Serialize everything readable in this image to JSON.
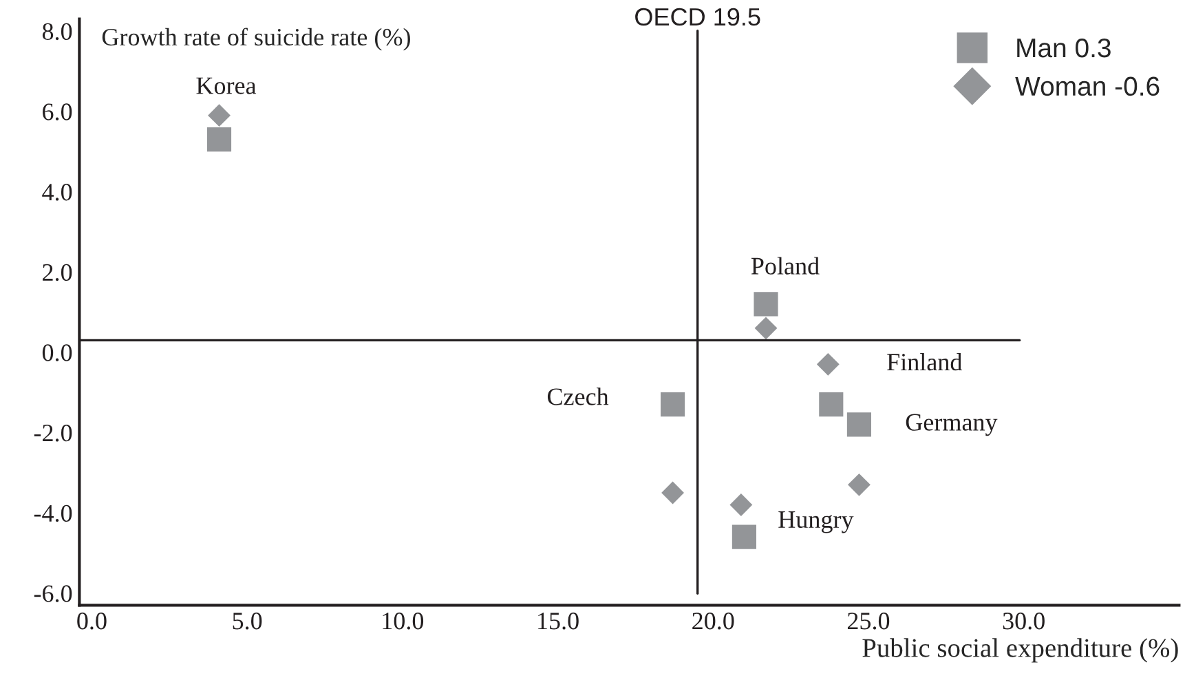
{
  "chart_data": {
    "type": "scatter",
    "ylabel": "Growth rate of suicide rate (%)",
    "xlabel": "Public social expenditure (%)",
    "xlim": [
      -0.4,
      35
    ],
    "ylim": [
      -6.3,
      8.3
    ],
    "xticks": [
      {
        "value": 0,
        "label": "0.0"
      },
      {
        "value": 5,
        "label": "5.0"
      },
      {
        "value": 10,
        "label": "10.0"
      },
      {
        "value": 15,
        "label": "15.0"
      },
      {
        "value": 20,
        "label": "20.0"
      },
      {
        "value": 25,
        "label": "25.0"
      },
      {
        "value": 30,
        "label": "30.0"
      }
    ],
    "yticks": [
      {
        "value": -6,
        "label": "-6.0"
      },
      {
        "value": -4,
        "label": "-4.0"
      },
      {
        "value": -2,
        "label": "-2.0"
      },
      {
        "value": 0,
        "label": "0.0"
      },
      {
        "value": 2,
        "label": "2.0"
      },
      {
        "value": 4,
        "label": "4.0"
      },
      {
        "value": 6,
        "label": "6.0"
      },
      {
        "value": 8,
        "label": "8.0"
      }
    ],
    "series": [
      {
        "name": "Man 0.3",
        "color": "#939598",
        "marker": "square",
        "x": [
          4.1,
          21.7,
          23.8,
          24.7,
          18.7,
          21.0
        ],
        "values": [
          5.3,
          1.2,
          -1.3,
          -1.8,
          -1.3,
          -4.6
        ]
      },
      {
        "name": "Woman -0.6",
        "color": "#939598",
        "marker": "diamond",
        "x": [
          4.1,
          21.7,
          23.7,
          24.7,
          18.7,
          20.9
        ],
        "values": [
          5.9,
          0.6,
          -0.3,
          -3.3,
          -3.5,
          -3.8
        ]
      }
    ],
    "ref_lines": [
      {
        "axis": "x",
        "value": 19.5,
        "label": "OECD 19.5",
        "color": "#231f20"
      },
      {
        "axis": "y",
        "value": 0.3,
        "color": "#231f20"
      }
    ],
    "annotations": [
      {
        "text": "Korea",
        "x": 4.1,
        "y": 5.9
      },
      {
        "text": "Poland",
        "x": 21.7,
        "y": 1.2
      },
      {
        "text": "Finland",
        "x": 23.7,
        "y": -0.3
      },
      {
        "text": "Germany",
        "x": 24.7,
        "y": -1.8
      },
      {
        "text": "Czech",
        "x": 18.7,
        "y": -1.3
      },
      {
        "text": "Hungry",
        "x": 21.0,
        "y": -4.6
      }
    ],
    "legend": "top right",
    "grid": false
  }
}
